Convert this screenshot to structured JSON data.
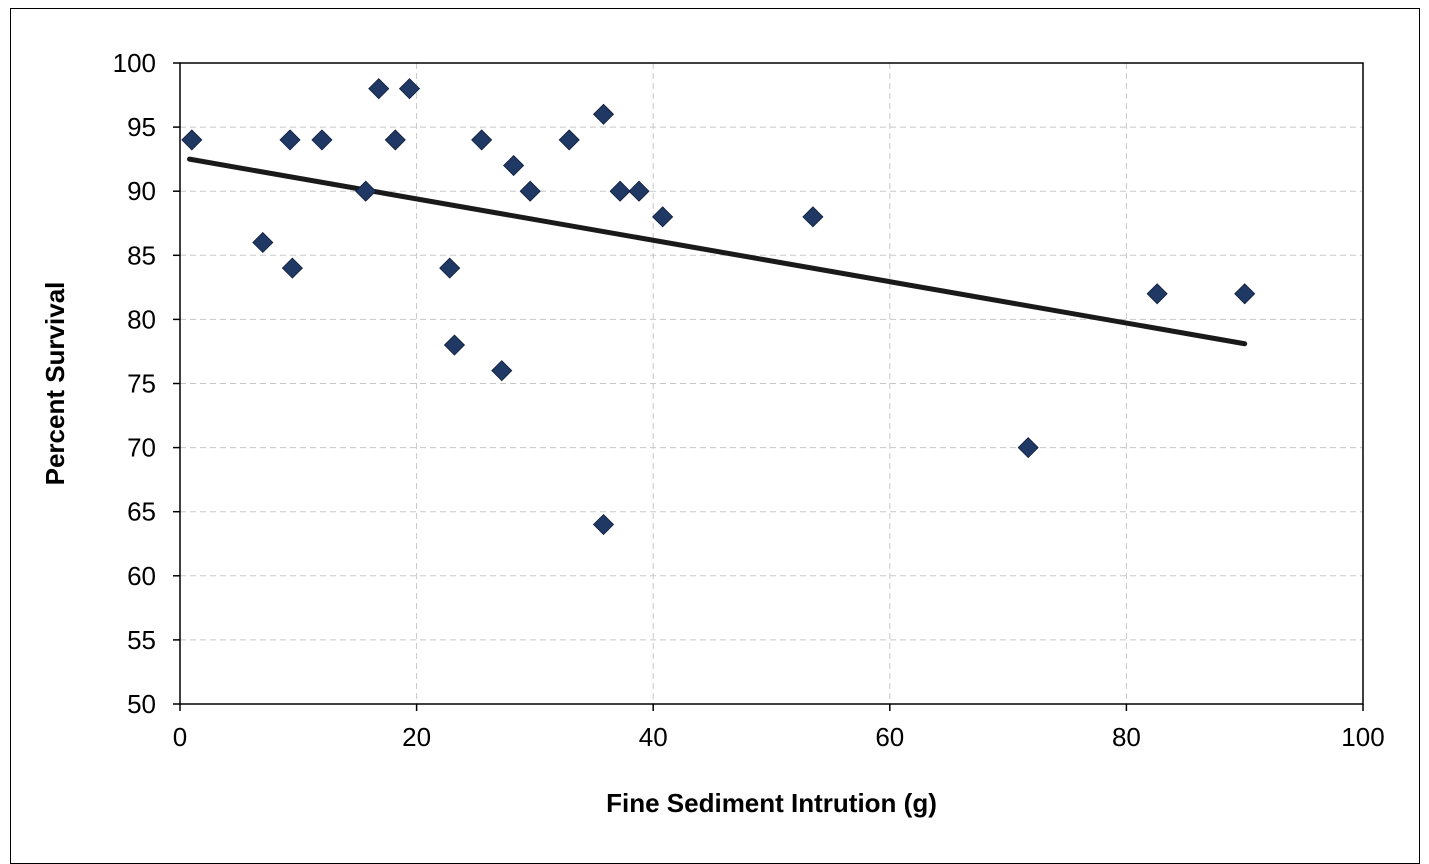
{
  "chart_data": {
    "type": "scatter",
    "title": "",
    "xlabel": "Fine Sediment Intrution (g)",
    "ylabel": "Percent Survival",
    "xlim": [
      0,
      100
    ],
    "ylim": [
      50,
      100
    ],
    "xticks": [
      0,
      20,
      40,
      60,
      80,
      100
    ],
    "yticks": [
      50,
      55,
      60,
      65,
      70,
      75,
      80,
      85,
      90,
      95,
      100
    ],
    "grid": true,
    "legend": "none",
    "marker_color": "#1f3864",
    "line_color": "#1a1a1a",
    "points": [
      {
        "x": 1.0,
        "y": 94
      },
      {
        "x": 7.0,
        "y": 86
      },
      {
        "x": 9.3,
        "y": 94
      },
      {
        "x": 9.5,
        "y": 84
      },
      {
        "x": 12.0,
        "y": 94
      },
      {
        "x": 15.7,
        "y": 90
      },
      {
        "x": 16.8,
        "y": 98
      },
      {
        "x": 18.2,
        "y": 94
      },
      {
        "x": 19.4,
        "y": 98
      },
      {
        "x": 22.8,
        "y": 84
      },
      {
        "x": 23.2,
        "y": 78
      },
      {
        "x": 25.5,
        "y": 94
      },
      {
        "x": 27.2,
        "y": 76
      },
      {
        "x": 28.2,
        "y": 92
      },
      {
        "x": 29.6,
        "y": 90
      },
      {
        "x": 32.9,
        "y": 94
      },
      {
        "x": 35.8,
        "y": 96
      },
      {
        "x": 35.8,
        "y": 64
      },
      {
        "x": 37.2,
        "y": 90
      },
      {
        "x": 38.8,
        "y": 90
      },
      {
        "x": 40.8,
        "y": 88
      },
      {
        "x": 53.5,
        "y": 88
      },
      {
        "x": 71.7,
        "y": 70
      },
      {
        "x": 82.6,
        "y": 82
      },
      {
        "x": 90.0,
        "y": 82
      }
    ],
    "trendline": {
      "x": [
        0.8,
        90.0
      ],
      "y": [
        92.5,
        78.1
      ]
    }
  }
}
